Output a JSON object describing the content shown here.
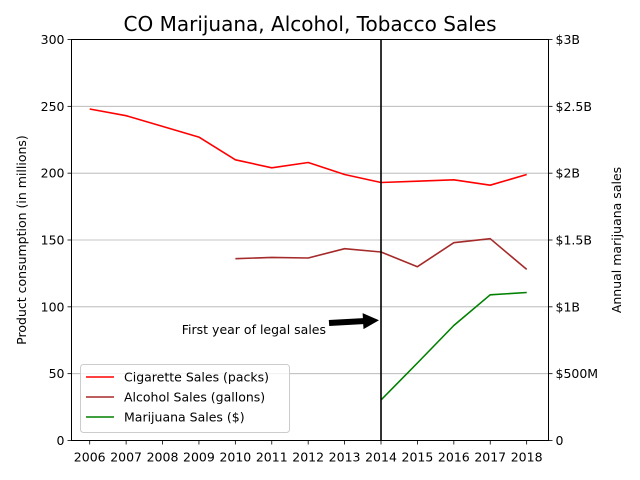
{
  "chart_data": {
    "type": "line",
    "title": "CO Marijuana, Alcohol, Tobacco Sales",
    "ylabel": "Product consumption (in millions)",
    "y2label": "Annual marijuana sales",
    "x": [
      2006,
      2007,
      2008,
      2009,
      2010,
      2011,
      2012,
      2013,
      2014,
      2015,
      2016,
      2017,
      2018
    ],
    "x_tick_labels": [
      "2006",
      "2007",
      "2008",
      "2009",
      "2010",
      "2011",
      "2012",
      "2013",
      "2014",
      "2015",
      "2016",
      "2017",
      "2018"
    ],
    "ylim": [
      0,
      300
    ],
    "y_ticks": [
      0,
      50,
      100,
      150,
      200,
      250,
      300
    ],
    "y_tick_labels": [
      "0",
      "50",
      "100",
      "150",
      "200",
      "250",
      "300"
    ],
    "y2lim": [
      0,
      3000000000
    ],
    "y2_ticks": [
      0,
      500000000,
      1000000000,
      1500000000,
      2000000000,
      2500000000,
      3000000000
    ],
    "y2_tick_labels": [
      "0",
      "$500M",
      "$1B",
      "$1.5B",
      "$2B",
      "$2.5B",
      "$3B"
    ],
    "grid": "horizontal",
    "legend_position": "lower-left",
    "series": [
      {
        "name": "Cigarette Sales (packs)",
        "axis": "left",
        "color": "#ff0000",
        "x": [
          2006,
          2007,
          2008,
          2009,
          2010,
          2011,
          2012,
          2013,
          2014,
          2015,
          2016,
          2017,
          2018
        ],
        "values": [
          248,
          243,
          235,
          227,
          210,
          204,
          208,
          199,
          193,
          194,
          195,
          191,
          199
        ]
      },
      {
        "name": "Alcohol Sales (gallons)",
        "axis": "left",
        "color": "#a52a2a",
        "x": [
          2010,
          2011,
          2012,
          2013,
          2014,
          2015,
          2016,
          2017,
          2018
        ],
        "values": [
          136,
          137,
          136.5,
          143.5,
          141,
          130,
          148,
          151,
          128
        ]
      },
      {
        "name": "Marijuana Sales ($)",
        "axis": "right",
        "color": "#008000",
        "x": [
          2014,
          2015,
          2016,
          2017,
          2018
        ],
        "values": [
          303000000,
          580000000,
          860000000,
          1090000000,
          1107000000
        ]
      }
    ],
    "reference_line": {
      "x": 2014,
      "color": "#000000"
    },
    "annotation": {
      "text": "First year of legal sales",
      "point_x": 2014,
      "point_y": 90
    }
  }
}
